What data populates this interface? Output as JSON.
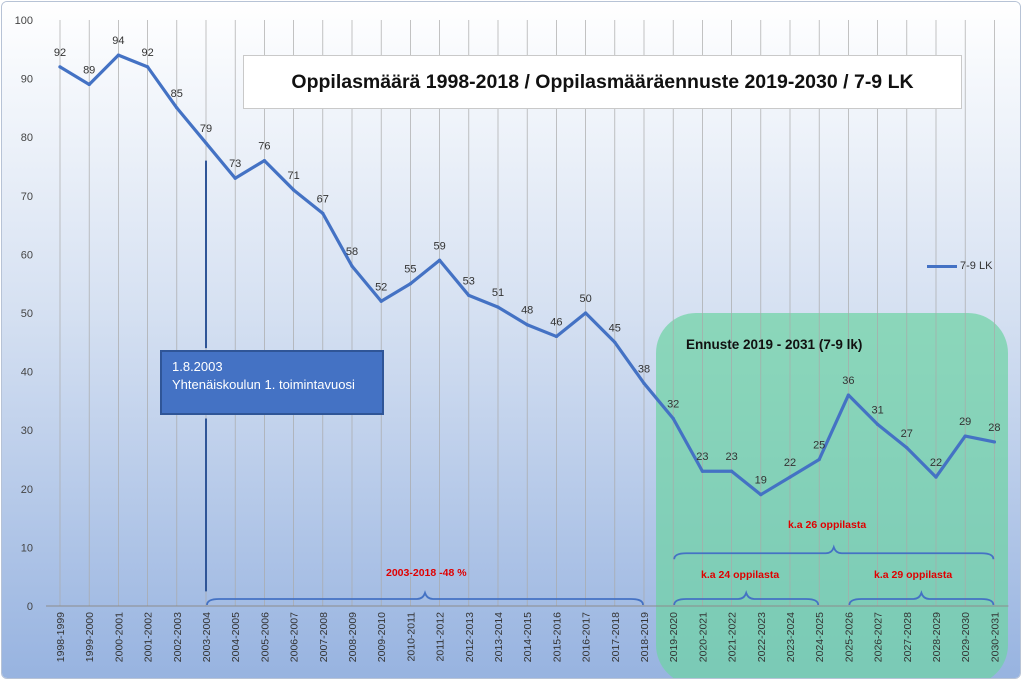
{
  "chart_data": {
    "type": "line",
    "title": "Oppilasmäärä 1998-2018 / Oppilasmääräennuste 2019-2030 / 7-9 LK",
    "xlabel": "",
    "ylabel": "",
    "ylim": [
      0,
      100
    ],
    "yticks": [
      "0",
      "10",
      "20",
      "30",
      "40",
      "50",
      "60",
      "70",
      "80",
      "90",
      "100"
    ],
    "grid": "vertical",
    "legend_position": "right",
    "categories": [
      "1998-1999",
      "1999-2000",
      "2000-2001",
      "2001-2002",
      "2002-2003",
      "2003-2004",
      "2004-2005",
      "2005-2006",
      "2006-2007",
      "2007-2008",
      "2008-2009",
      "2009-2010",
      "2010-2011",
      "2011-2012",
      "2012-2013",
      "2013-2014",
      "2014-2015",
      "2015-2016",
      "2016-2017",
      "2017-2018",
      "2018-2019",
      "2019-2020",
      "2020-2021",
      "2021-2022",
      "2022-2023",
      "2023-2024",
      "2024-2025",
      "2025-2026",
      "2026-2027",
      "2027-2028",
      "2028-2029",
      "2029-2030",
      "2030-2031"
    ],
    "series": [
      {
        "name": "7-9 LK",
        "color": "#4472c4",
        "values": [
          92,
          89,
          94,
          92,
          85,
          79,
          73,
          76,
          71,
          67,
          58,
          52,
          55,
          59,
          53,
          51,
          48,
          46,
          50,
          45,
          38,
          32,
          23,
          23,
          19,
          22,
          25,
          36,
          31,
          27,
          22,
          29,
          28
        ]
      }
    ],
    "annotations": {
      "callout_date": "1.8.2003",
      "callout_text": "Yhtenäiskoulun 1. toimintavuosi",
      "forecast_title": "Ennuste 2019 - 2031 (7-9 lk)",
      "decline_note": "2003-2018 -48 %",
      "avg_all": "k.a 26 oppilasta",
      "avg_first": "k.a 24 oppilasta",
      "avg_second": "k.a 29 oppilasta"
    },
    "colors": {
      "line": "#4472c4",
      "forecast_box": "#6fd2a5",
      "callout": "#4472c4",
      "note_red": "#e00000"
    }
  }
}
